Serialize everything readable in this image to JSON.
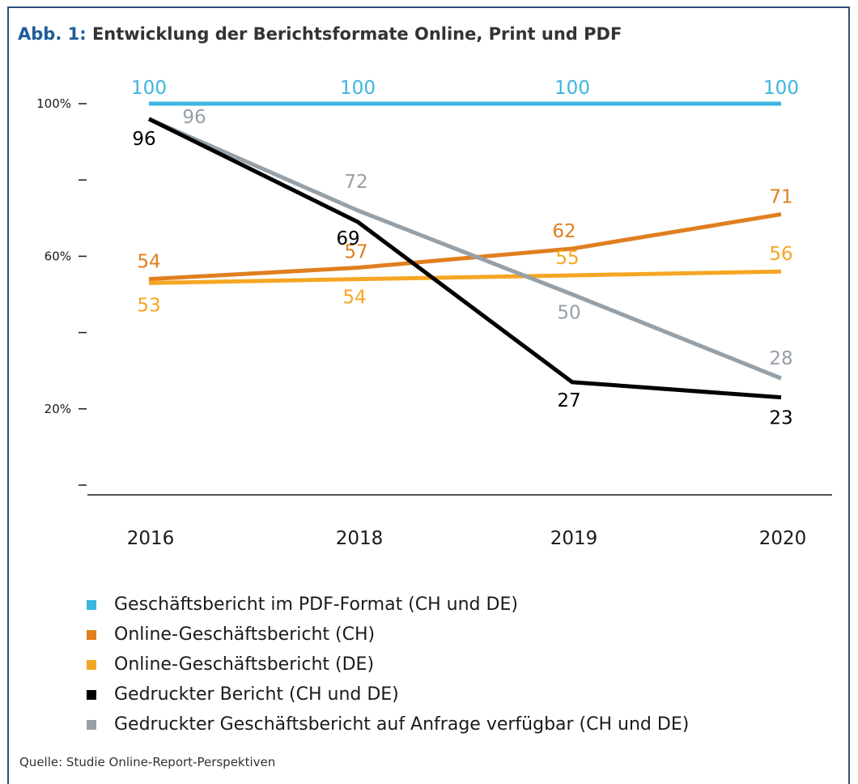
{
  "figure": {
    "label": "Abb. 1:",
    "title": "Entwicklung der Berichtsformate Online, Print und PDF",
    "source": "Quelle: Studie Online-Report-Perspektiven"
  },
  "chart_data": {
    "type": "line",
    "categories": [
      "2016",
      "2018",
      "2019",
      "2020"
    ],
    "y_ticks": [
      "100%",
      "",
      "60%",
      "",
      "20%",
      ""
    ],
    "y_tick_values": [
      100,
      80,
      60,
      40,
      20,
      0
    ],
    "ylim": [
      0,
      100
    ],
    "grid": false,
    "legend_position": "bottom",
    "series": [
      {
        "name": "Geschäftsbericht im PDF-Format (CH und DE)",
        "color": "#3db5e0",
        "values": [
          100,
          100,
          100,
          100
        ]
      },
      {
        "name": "Online-Geschäftsbericht (CH)",
        "color": "#e07f1f",
        "values": [
          54,
          57,
          62,
          71
        ]
      },
      {
        "name": "Online-Geschäftsbericht (DE)",
        "color": "#f5a623",
        "values": [
          53,
          54,
          55,
          56
        ]
      },
      {
        "name": "Gedruckter Bericht (CH und DE)",
        "color": "#000000",
        "values": [
          96,
          69,
          27,
          23
        ]
      },
      {
        "name": "Gedruckter Geschäftsbericht auf Anfrage verfügbar (CH und DE)",
        "color": "#96a0a8",
        "values": [
          96,
          72,
          50,
          28
        ]
      }
    ]
  }
}
